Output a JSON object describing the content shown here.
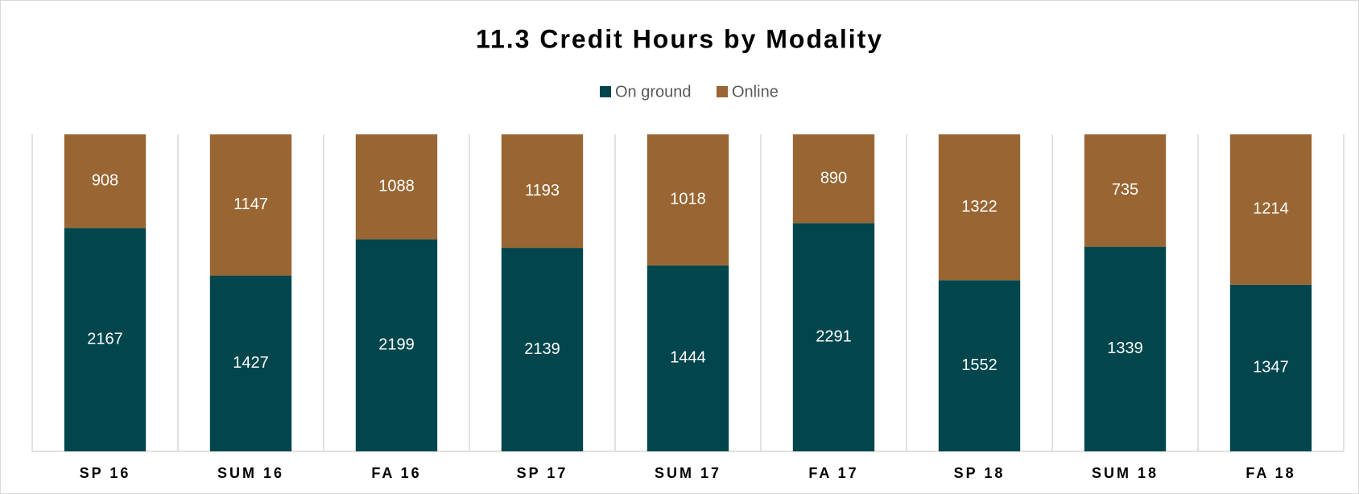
{
  "chart_data": {
    "type": "bar",
    "stacking": "percent",
    "title": "11.3 Credit Hours by Modality",
    "categories": [
      "SP 16",
      "SUM 16",
      "FA 16",
      "SP 17",
      "SUM 17",
      "FA 17",
      "SP 18",
      "SUM 18",
      "FA 18"
    ],
    "series": [
      {
        "name": "On ground",
        "color": "#02464d",
        "values": [
          2167,
          1427,
          2199,
          2139,
          1444,
          2291,
          1552,
          1339,
          1347
        ]
      },
      {
        "name": "Online",
        "color": "#996633",
        "values": [
          908,
          1147,
          1088,
          1193,
          1018,
          890,
          1322,
          735,
          1214
        ]
      }
    ],
    "legend": "top"
  }
}
